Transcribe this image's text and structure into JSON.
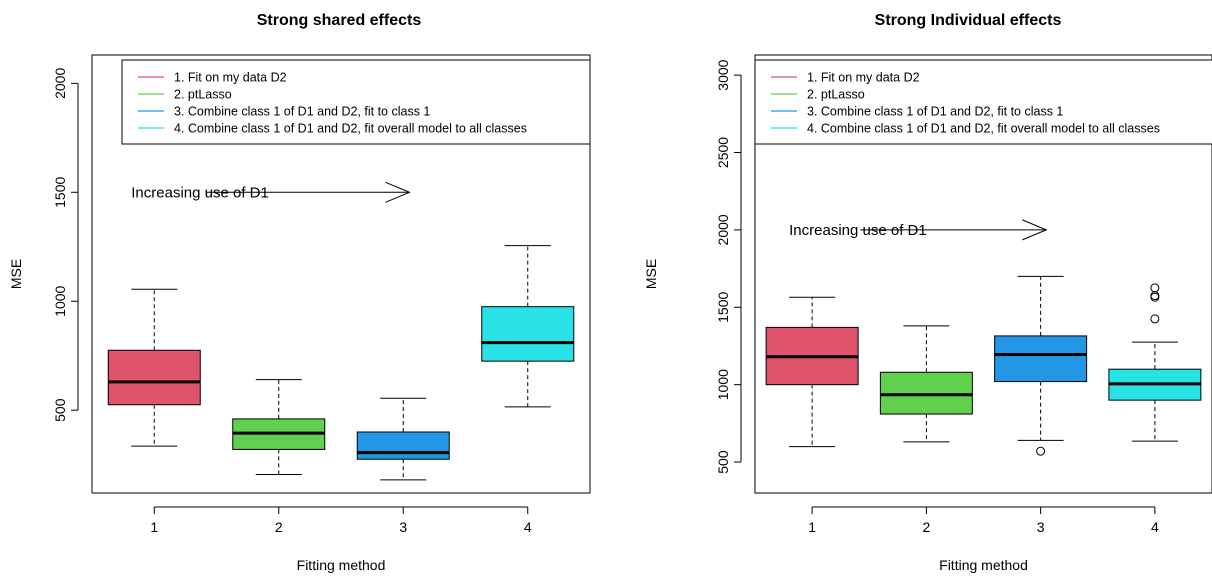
{
  "chart_data": [
    {
      "type": "boxplot",
      "title": "Strong shared effects",
      "xlabel": "Fitting method",
      "ylabel": "MSE",
      "ylim": [
        120,
        2130
      ],
      "yticks": [
        500,
        1000,
        1500,
        2000
      ],
      "categories": [
        "1",
        "2",
        "3",
        "4"
      ],
      "colors": [
        "#DF536B",
        "#61D04F",
        "#2297E6",
        "#28E2E5"
      ],
      "boxes": [
        {
          "category": "1",
          "whisker_low": 335,
          "q1": 525,
          "median": 630,
          "q3": 775,
          "whisker_high": 1055,
          "outliers": []
        },
        {
          "category": "2",
          "whisker_low": 205,
          "q1": 320,
          "median": 395,
          "q3": 460,
          "whisker_high": 640,
          "outliers": []
        },
        {
          "category": "3",
          "whisker_low": 180,
          "q1": 275,
          "median": 305,
          "q3": 400,
          "whisker_high": 555,
          "outliers": []
        },
        {
          "category": "4",
          "whisker_low": 515,
          "q1": 725,
          "median": 810,
          "q3": 975,
          "whisker_high": 1255,
          "outliers": []
        }
      ],
      "legend": {
        "position": "top-right",
        "entries": [
          "1. Fit on my data D2",
          "2. ptLasso",
          "3. Combine class 1 of D1 and D2, fit to class 1",
          "4. Combine class 1 of D1 and D2, fit overall model to all classes"
        ]
      },
      "annotation": {
        "text": "Increasing use of D1",
        "x_start": 1.42,
        "x_end": 3.05,
        "y": 1500
      }
    },
    {
      "type": "boxplot",
      "title": "Strong Individual effects",
      "xlabel": "Fitting method",
      "ylabel": "MSE",
      "ylim": [
        300,
        3130
      ],
      "yticks": [
        500,
        1000,
        1500,
        2000,
        2500,
        3000
      ],
      "categories": [
        "1",
        "2",
        "3",
        "4"
      ],
      "colors": [
        "#DF536B",
        "#61D04F",
        "#2297E6",
        "#28E2E5"
      ],
      "boxes": [
        {
          "category": "1",
          "whisker_low": 600,
          "q1": 1000,
          "median": 1180,
          "q3": 1370,
          "whisker_high": 1565,
          "outliers": []
        },
        {
          "category": "2",
          "whisker_low": 630,
          "q1": 810,
          "median": 935,
          "q3": 1080,
          "whisker_high": 1380,
          "outliers": []
        },
        {
          "category": "3",
          "whisker_low": 640,
          "q1": 1020,
          "median": 1195,
          "q3": 1315,
          "whisker_high": 1700,
          "outliers": [
            570
          ]
        },
        {
          "category": "4",
          "whisker_low": 635,
          "q1": 900,
          "median": 1005,
          "q3": 1100,
          "whisker_high": 1275,
          "outliers": [
            1425,
            1565,
            1575,
            1625
          ]
        }
      ],
      "legend": {
        "position": "top-right",
        "entries": [
          "1. Fit on my data D2",
          "2. ptLasso",
          "3. Combine class 1 of D1 and D2, fit to class 1",
          "4. Combine class 1 of D1 and D2, fit overall model to all classes"
        ]
      },
      "annotation": {
        "text": "Increasing use of D1",
        "x_start": 1.42,
        "x_end": 3.05,
        "y": 2000
      }
    }
  ]
}
